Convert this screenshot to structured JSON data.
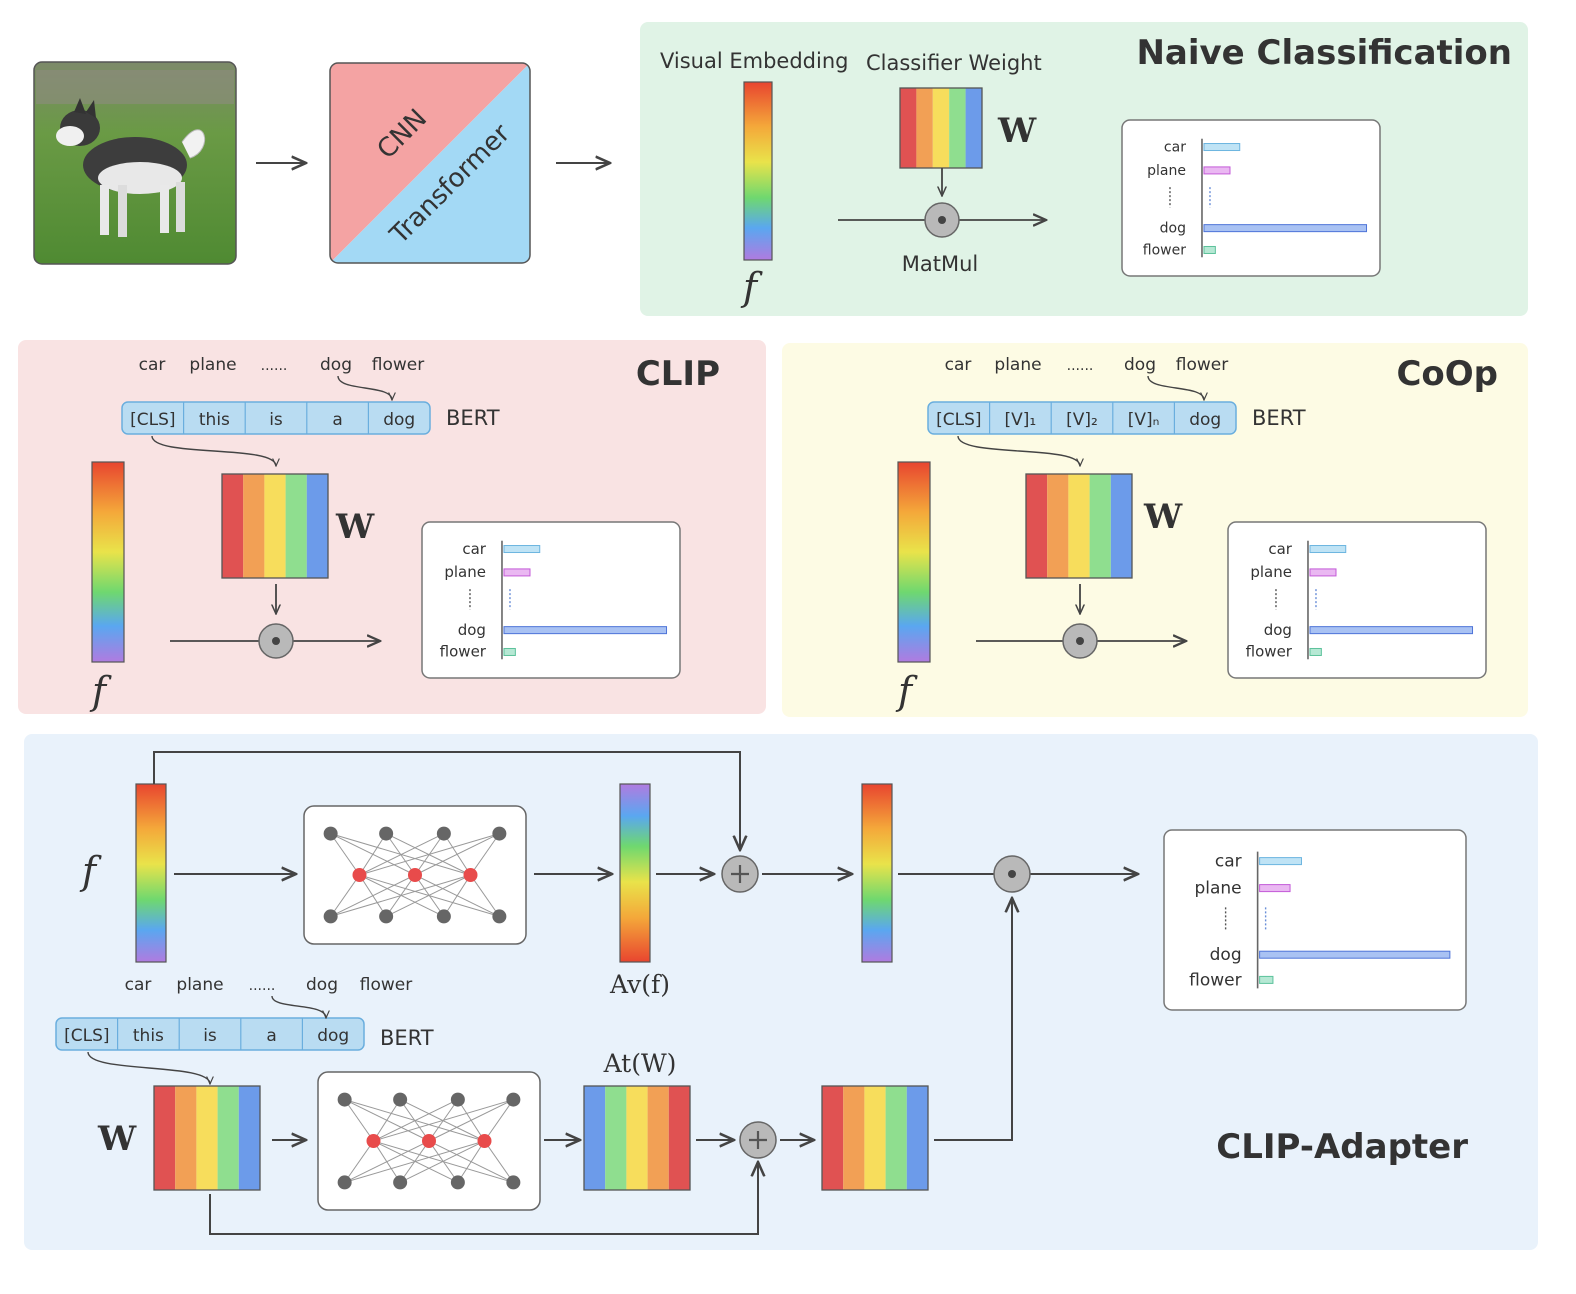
{
  "colors": {
    "naive_bg": "#e0f3e6",
    "clip_bg": "#f9e3e3",
    "coop_bg": "#fdfbe4",
    "adapter_bg": "#e9f2fb",
    "cnn": "#f4a3a3",
    "transformer": "#a3d9f5",
    "token": "#b9dcf2",
    "rainbow": [
      "#e05252",
      "#f2a055",
      "#f7dd5c",
      "#8fde8f",
      "#6c9bea",
      "#b07be0"
    ]
  },
  "backbone": {
    "top_label": "CNN",
    "bottom_label": "Transformer"
  },
  "naive": {
    "title": "Naive Classification",
    "visual_embedding": "Visual Embedding",
    "classifier_weight": "Classifier Weight",
    "w_label": "W",
    "f_label": "f",
    "matmul": "MatMul"
  },
  "clip": {
    "title": "CLIP",
    "classes": [
      "car",
      "plane",
      "......",
      "dog",
      "flower"
    ],
    "tokens": [
      "[CLS]",
      "this",
      "is",
      "a",
      "dog"
    ],
    "encoder": "BERT",
    "w_label": "W",
    "f_label": "f"
  },
  "coop": {
    "title": "CoOp",
    "classes": [
      "car",
      "plane",
      "......",
      "dog",
      "flower"
    ],
    "tokens": [
      "[CLS]",
      "[V]₁",
      "[V]₂",
      "[V]ₙ",
      "dog"
    ],
    "encoder": "BERT",
    "w_label": "W",
    "f_label": "f"
  },
  "adapter": {
    "title": "CLIP-Adapter",
    "f_label": "f",
    "w_label": "W",
    "av_label": "Av(f)",
    "at_label": "At(W)",
    "classes": [
      "car",
      "plane",
      "......",
      "dog",
      "flower"
    ],
    "tokens": [
      "[CLS]",
      "this",
      "is",
      "a",
      "dog"
    ],
    "encoder": "BERT"
  },
  "chart_data": {
    "type": "bar",
    "categories": [
      "car",
      "plane",
      "dog",
      "flower"
    ],
    "values": [
      0.22,
      0.16,
      1.0,
      0.07
    ],
    "ylim": [
      0,
      1
    ]
  }
}
